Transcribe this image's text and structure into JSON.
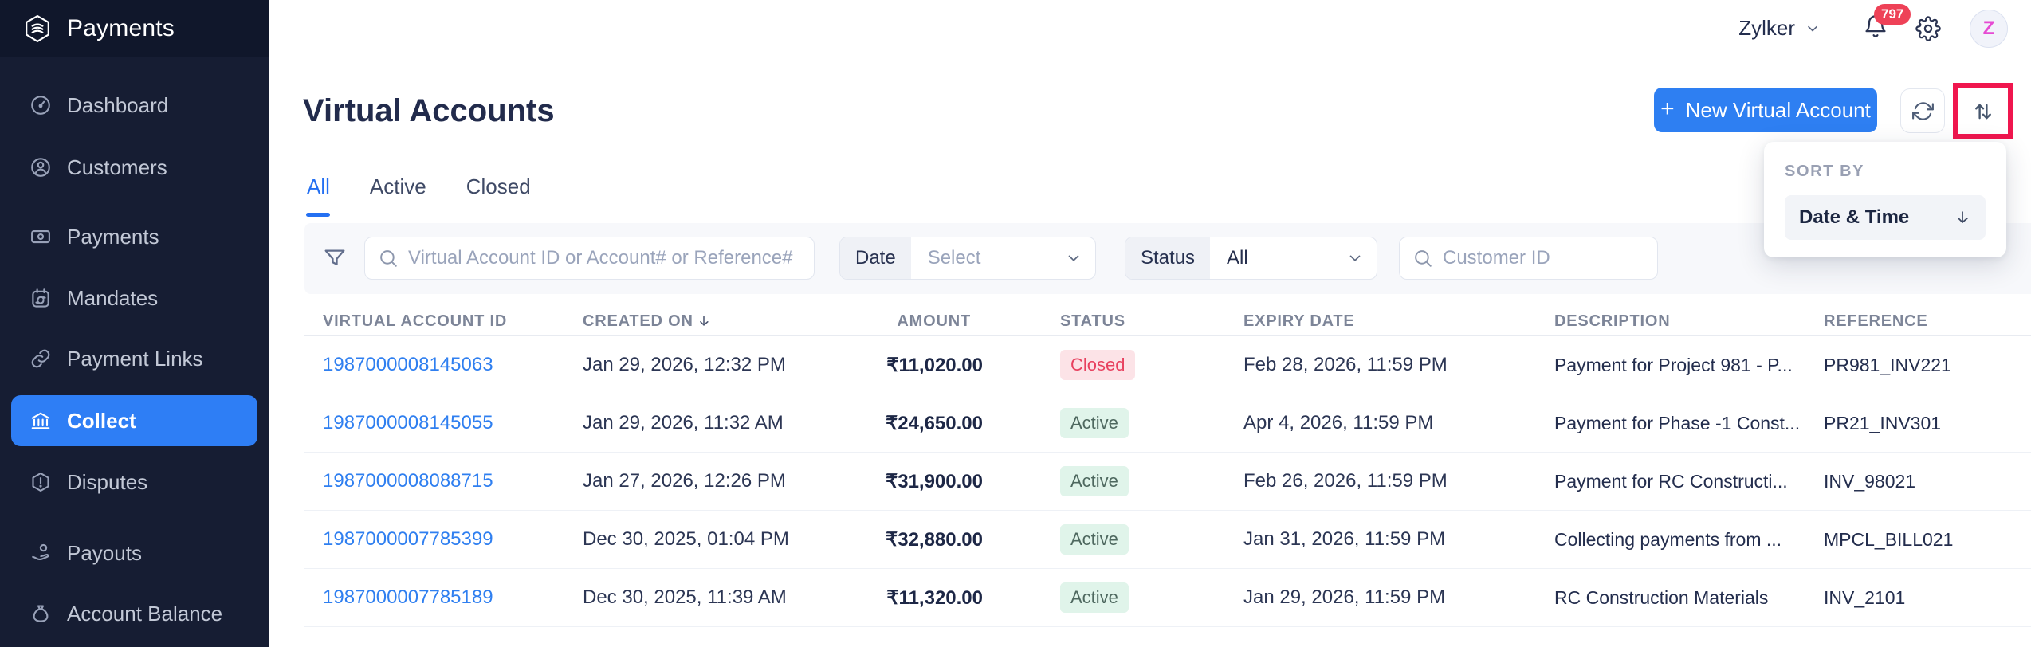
{
  "brand": {
    "name": "Payments"
  },
  "sidebar": {
    "items": [
      {
        "label": "Dashboard",
        "icon": "dashboard-icon",
        "active": false
      },
      {
        "label": "Customers",
        "icon": "customers-icon",
        "active": false
      },
      {
        "label": "Payments",
        "icon": "payments-icon",
        "active": false
      },
      {
        "label": "Mandates",
        "icon": "mandates-icon",
        "active": false
      },
      {
        "label": "Payment Links",
        "icon": "payment-links-icon",
        "active": false
      },
      {
        "label": "Collect",
        "icon": "collect-icon",
        "active": true
      },
      {
        "label": "Disputes",
        "icon": "disputes-icon",
        "active": false
      },
      {
        "label": "Payouts",
        "icon": "payouts-icon",
        "active": false
      },
      {
        "label": "Account Balance",
        "icon": "account-balance-icon",
        "active": false
      }
    ]
  },
  "topbar": {
    "org_name": "Zylker",
    "notification_count": "797",
    "avatar_initial": "Z"
  },
  "page": {
    "title": "Virtual Accounts",
    "new_button_label": "New Virtual Account",
    "tabs": [
      {
        "label": "All",
        "active": true
      },
      {
        "label": "Active",
        "active": false
      },
      {
        "label": "Closed",
        "active": false
      }
    ]
  },
  "sort_popup": {
    "heading": "SORT BY",
    "selected_option": "Date & Time",
    "direction": "descending"
  },
  "filters": {
    "search_placeholder": "Virtual Account ID or Account# or Reference#",
    "date_label": "Date",
    "date_value": "Select",
    "status_label": "Status",
    "status_value": "All",
    "customer_placeholder": "Customer ID"
  },
  "table": {
    "columns": [
      {
        "key": "id",
        "label": "VIRTUAL ACCOUNT ID",
        "sorted": false
      },
      {
        "key": "created",
        "label": "CREATED ON",
        "sorted": true
      },
      {
        "key": "amount",
        "label": "AMOUNT",
        "sorted": false
      },
      {
        "key": "status",
        "label": "STATUS",
        "sorted": false
      },
      {
        "key": "expiry",
        "label": "EXPIRY DATE",
        "sorted": false
      },
      {
        "key": "description",
        "label": "DESCRIPTION",
        "sorted": false
      },
      {
        "key": "reference",
        "label": "REFERENCE",
        "sorted": false
      }
    ],
    "rows": [
      {
        "virtual_account_id": "1987000008145063",
        "created_on": "Jan 29, 2026, 12:32 PM",
        "amount": "₹11,020.00",
        "status": "Closed",
        "expiry_date": "Feb 28, 2026, 11:59 PM",
        "description": "Payment for Project 981 - P...",
        "reference": "PR981_INV221"
      },
      {
        "virtual_account_id": "1987000008145055",
        "created_on": "Jan 29, 2026, 11:32 AM",
        "amount": "₹24,650.00",
        "status": "Active",
        "expiry_date": "Apr 4, 2026, 11:59 PM",
        "description": "Payment for Phase -1 Const...",
        "reference": "PR21_INV301"
      },
      {
        "virtual_account_id": "1987000008088715",
        "created_on": "Jan 27, 2026, 12:26 PM",
        "amount": "₹31,900.00",
        "status": "Active",
        "expiry_date": "Feb 26, 2026, 11:59 PM",
        "description": "Payment for RC Constructi...",
        "reference": "INV_98021"
      },
      {
        "virtual_account_id": "1987000007785399",
        "created_on": "Dec 30, 2025, 01:04 PM",
        "amount": "₹32,880.00",
        "status": "Active",
        "expiry_date": "Jan 31, 2026, 11:59 PM",
        "description": "Collecting payments from ...",
        "reference": "MPCL_BILL021"
      },
      {
        "virtual_account_id": "1987000007785189",
        "created_on": "Dec 30, 2025, 11:39 AM",
        "amount": "₹11,320.00",
        "status": "Active",
        "expiry_date": "Jan 29, 2026, 11:59 PM",
        "description": "RC Construction Materials",
        "reference": "INV_2101"
      }
    ]
  },
  "annotation": {
    "type": "highlight-box",
    "target": "sort-button",
    "color": "#f0164e"
  },
  "colors": {
    "accent_blue": "#2e7ff2",
    "active_tab_blue": "#2470f2",
    "link_blue": "#2f7ff0",
    "sidebar_bg": "#161d33",
    "sidebar_header_bg": "#10172b",
    "active_nav_bg": "#2e7ef5",
    "badge_closed_text": "#e8415f",
    "badge_closed_bg": "#fce3e7",
    "badge_active_text": "#4e685f",
    "badge_active_bg": "#e0f4ea",
    "notification_red": "#ee4157",
    "avatar_initial_pink": "#e64bd3",
    "annotation_red": "#f0164e"
  }
}
